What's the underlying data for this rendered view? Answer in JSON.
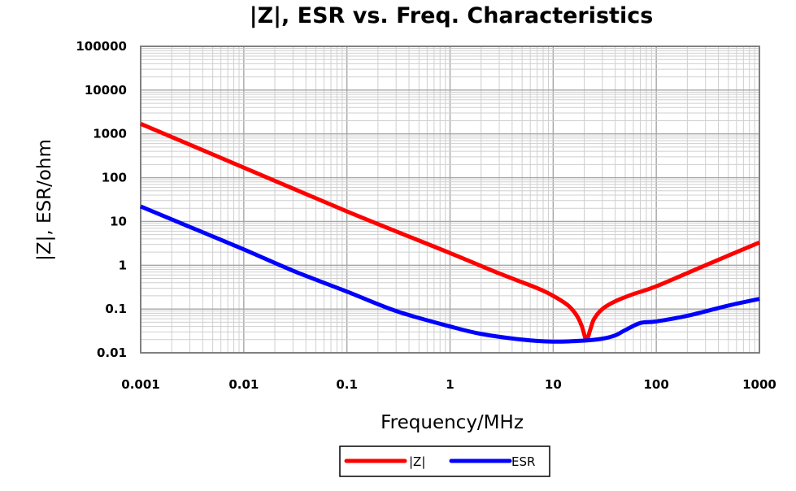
{
  "chart_data": {
    "type": "line",
    "title": "|Z|, ESR vs. Freq. Characteristics",
    "xlabel": "Frequency/MHz",
    "ylabel": "|Z|, ESR/ohm",
    "xscale": "log",
    "yscale": "log",
    "xlim": [
      0.001,
      1000
    ],
    "ylim": [
      0.01,
      100000
    ],
    "x_tick_labels": [
      "0.001",
      "0.01",
      "0.1",
      "1",
      "10",
      "100",
      "1000"
    ],
    "y_tick_labels": [
      "0.01",
      "0.1",
      "1",
      "10",
      "100",
      "1000",
      "10000",
      "100000"
    ],
    "grid": true,
    "legend_position": "bottom",
    "series": [
      {
        "name": "|Z|",
        "color": "#ff0000",
        "x": [
          0.001,
          0.01,
          0.1,
          1,
          3,
          7,
          10,
          14,
          17,
          19,
          21,
          23,
          25,
          30,
          40,
          60,
          100,
          300,
          1000
        ],
        "y": [
          1700,
          170,
          17,
          1.9,
          0.65,
          0.3,
          0.2,
          0.12,
          0.07,
          0.04,
          0.02,
          0.035,
          0.06,
          0.1,
          0.15,
          0.22,
          0.33,
          1.0,
          3.3
        ]
      },
      {
        "name": "ESR",
        "color": "#0000ff",
        "x": [
          0.001,
          0.003,
          0.01,
          0.03,
          0.1,
          0.3,
          1,
          2,
          5,
          10,
          20,
          30,
          40,
          50,
          70,
          100,
          200,
          500,
          1000
        ],
        "y": [
          22,
          7.5,
          2.3,
          0.75,
          0.25,
          0.09,
          0.04,
          0.027,
          0.02,
          0.018,
          0.019,
          0.021,
          0.025,
          0.033,
          0.048,
          0.052,
          0.07,
          0.12,
          0.17
        ]
      }
    ]
  }
}
